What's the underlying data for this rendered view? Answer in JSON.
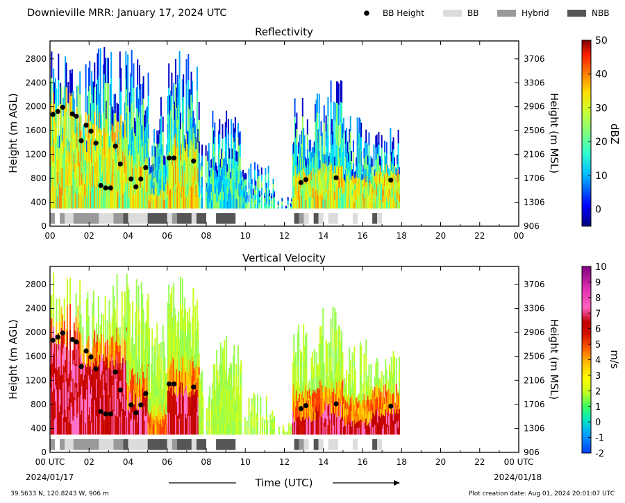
{
  "figure": {
    "title": "Downieville MRR:  January 17, 2024 UTC",
    "location": "39.5633 N, 120.8243 W, 906 m",
    "creation_date": "Plot creation date: Aug 01, 2024 20:01:07 UTC",
    "time_label": "Time (UTC)",
    "start_date": "2024/01/17",
    "end_date": "2024/01/18"
  },
  "legend": {
    "items": [
      {
        "label": "BB Height",
        "color": "#000000",
        "kind": "dot"
      },
      {
        "label": "BB",
        "color": "#dcdcdc",
        "kind": "box"
      },
      {
        "label": "Hybrid",
        "color": "#999999",
        "kind": "box"
      },
      {
        "label": "NBB",
        "color": "#555555",
        "kind": "box"
      }
    ]
  },
  "chart_data": [
    {
      "type": "heatmap",
      "title": "Reflectivity",
      "ylabel": "Height (m AGL)",
      "ylabel_right": "Height (m MSL)",
      "xlim": [
        0,
        24
      ],
      "ylim": [
        0,
        3100
      ],
      "x_ticks": [
        "00",
        "02",
        "04",
        "06",
        "08",
        "10",
        "12",
        "14",
        "16",
        "18",
        "20",
        "22",
        "00"
      ],
      "y_ticks": [
        0,
        400,
        800,
        1200,
        1600,
        2000,
        2400,
        2800
      ],
      "y_ticks_right": [
        "906",
        "1306",
        "1706",
        "2106",
        "2506",
        "2906",
        "3306",
        "3706"
      ],
      "colorbar": {
        "label": "dBZ",
        "min": -5,
        "max": 50,
        "ticks": [
          0,
          10,
          20,
          30,
          40,
          50
        ]
      },
      "bb_height": [
        [
          0.15,
          1870
        ],
        [
          0.4,
          1920
        ],
        [
          0.65,
          1990
        ],
        [
          1.15,
          1880
        ],
        [
          1.35,
          1840
        ],
        [
          1.6,
          1430
        ],
        [
          1.85,
          1690
        ],
        [
          2.1,
          1590
        ],
        [
          2.35,
          1390
        ],
        [
          2.6,
          680
        ],
        [
          2.85,
          640
        ],
        [
          3.1,
          640
        ],
        [
          3.35,
          1340
        ],
        [
          3.6,
          1040
        ],
        [
          4.15,
          790
        ],
        [
          4.4,
          660
        ],
        [
          4.65,
          790
        ],
        [
          4.9,
          980
        ],
        [
          6.1,
          1140
        ],
        [
          6.35,
          1140
        ],
        [
          7.35,
          1090
        ],
        [
          12.85,
          730
        ],
        [
          13.1,
          780
        ],
        [
          14.65,
          810
        ],
        [
          17.45,
          770
        ]
      ]
    },
    {
      "type": "heatmap",
      "title": "Vertical Velocity",
      "ylabel": "Height (m AGL)",
      "ylabel_right": "Height (m MSL)",
      "xlim": [
        0,
        24
      ],
      "ylim": [
        0,
        3100
      ],
      "x_ticks": [
        "00 UTC",
        "02",
        "04",
        "06",
        "08",
        "10",
        "12",
        "14",
        "16",
        "18",
        "20",
        "22",
        "00 UTC"
      ],
      "y_ticks": [
        0,
        400,
        800,
        1200,
        1600,
        2000,
        2400,
        2800
      ],
      "y_ticks_right": [
        "906",
        "1306",
        "1706",
        "2106",
        "2506",
        "2906",
        "3306",
        "3706"
      ],
      "colorbar": {
        "label": "m/s",
        "min": -2,
        "max": 10,
        "ticks": [
          -2,
          -1,
          0,
          1,
          2,
          3,
          4,
          5,
          6,
          7,
          8,
          9,
          10
        ]
      },
      "bb_height": [
        [
          0.15,
          1870
        ],
        [
          0.4,
          1920
        ],
        [
          0.65,
          1990
        ],
        [
          1.15,
          1880
        ],
        [
          1.35,
          1840
        ],
        [
          1.6,
          1430
        ],
        [
          1.85,
          1690
        ],
        [
          2.1,
          1590
        ],
        [
          2.35,
          1390
        ],
        [
          2.6,
          680
        ],
        [
          2.85,
          640
        ],
        [
          3.1,
          640
        ],
        [
          3.35,
          1340
        ],
        [
          3.6,
          1040
        ],
        [
          4.15,
          790
        ],
        [
          4.4,
          660
        ],
        [
          4.65,
          790
        ],
        [
          4.9,
          980
        ],
        [
          6.1,
          1140
        ],
        [
          6.35,
          1140
        ],
        [
          7.35,
          1090
        ],
        [
          12.85,
          730
        ],
        [
          13.1,
          780
        ],
        [
          14.65,
          810
        ],
        [
          17.45,
          770
        ]
      ]
    }
  ],
  "bb_type_strip": [
    {
      "start": 0.0,
      "end": 0.25,
      "type": "Hybrid"
    },
    {
      "start": 0.5,
      "end": 0.75,
      "type": "Hybrid"
    },
    {
      "start": 0.75,
      "end": 1.2,
      "type": "BB"
    },
    {
      "start": 1.2,
      "end": 2.5,
      "type": "Hybrid"
    },
    {
      "start": 2.5,
      "end": 3.25,
      "type": "BB"
    },
    {
      "start": 3.25,
      "end": 3.75,
      "type": "Hybrid"
    },
    {
      "start": 3.75,
      "end": 4.0,
      "type": "NBB"
    },
    {
      "start": 4.0,
      "end": 5.0,
      "type": "BB"
    },
    {
      "start": 5.0,
      "end": 6.0,
      "type": "NBB"
    },
    {
      "start": 6.0,
      "end": 6.25,
      "type": "BB"
    },
    {
      "start": 6.25,
      "end": 6.5,
      "type": "Hybrid"
    },
    {
      "start": 6.5,
      "end": 7.25,
      "type": "NBB"
    },
    {
      "start": 7.25,
      "end": 7.5,
      "type": "BB"
    },
    {
      "start": 7.5,
      "end": 8.0,
      "type": "NBB"
    },
    {
      "start": 8.5,
      "end": 9.5,
      "type": "NBB"
    },
    {
      "start": 12.5,
      "end": 12.75,
      "type": "NBB"
    },
    {
      "start": 12.75,
      "end": 13.0,
      "type": "Hybrid"
    },
    {
      "start": 13.0,
      "end": 13.25,
      "type": "BB"
    },
    {
      "start": 13.5,
      "end": 13.75,
      "type": "NBB"
    },
    {
      "start": 13.75,
      "end": 14.0,
      "type": "BB"
    },
    {
      "start": 14.25,
      "end": 14.75,
      "type": "BB"
    },
    {
      "start": 15.5,
      "end": 15.75,
      "type": "BB"
    },
    {
      "start": 16.5,
      "end": 16.75,
      "type": "NBB"
    },
    {
      "start": 16.75,
      "end": 17.0,
      "type": "BB"
    }
  ],
  "echo_columns": [
    {
      "start": 0.0,
      "end": 1.5,
      "top": 3000,
      "core": 2000
    },
    {
      "start": 1.5,
      "end": 3.9,
      "top": 3000,
      "core": 1600
    },
    {
      "start": 3.9,
      "end": 5.0,
      "top": 3000,
      "core": 1000
    },
    {
      "start": 5.0,
      "end": 6.0,
      "top": 2200,
      "core": 400
    },
    {
      "start": 6.0,
      "end": 7.6,
      "top": 3000,
      "core": 1150
    },
    {
      "start": 7.6,
      "end": 8.3,
      "top": 1500,
      "core": 0
    },
    {
      "start": 8.3,
      "end": 9.8,
      "top": 1950,
      "core": 0
    },
    {
      "start": 9.8,
      "end": 11.5,
      "top": 1100,
      "core": 0
    },
    {
      "start": 11.5,
      "end": 12.4,
      "top": 500,
      "core": 0
    },
    {
      "start": 12.4,
      "end": 13.6,
      "top": 2150,
      "core": 700
    },
    {
      "start": 13.6,
      "end": 15.0,
      "top": 2450,
      "core": 800
    },
    {
      "start": 15.0,
      "end": 16.5,
      "top": 1900,
      "core": 600
    },
    {
      "start": 16.5,
      "end": 17.9,
      "top": 1800,
      "core": 750
    }
  ]
}
